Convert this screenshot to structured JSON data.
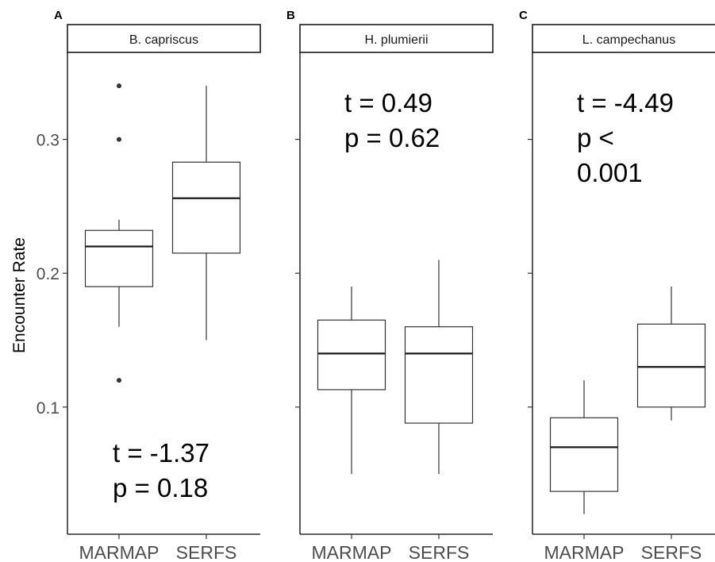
{
  "chart_data": {
    "type": "boxplot",
    "ylabel": "Encounter Rate",
    "categories": [
      "MARMAP",
      "SERFS"
    ],
    "y_ticks": [
      0.1,
      0.2,
      0.3
    ],
    "y_tick_labels": [
      "0.1",
      "0.2",
      "0.3"
    ],
    "ylim": [
      0.005,
      0.365
    ],
    "panels": [
      {
        "letter": "A",
        "title": "B. capriscus",
        "stats": [
          "t = -1.37",
          "p = 0.18"
        ],
        "stats_position": "bottom",
        "boxes": [
          {
            "category": "MARMAP",
            "min": 0.16,
            "q1": 0.19,
            "median": 0.22,
            "q3": 0.232,
            "max": 0.24,
            "outliers": [
              0.34,
              0.3,
              0.12
            ]
          },
          {
            "category": "SERFS",
            "min": 0.15,
            "q1": 0.215,
            "median": 0.256,
            "q3": 0.283,
            "max": 0.34,
            "outliers": []
          }
        ]
      },
      {
        "letter": "B",
        "title": "H. plumierii",
        "stats": [
          "t = 0.49",
          "p = 0.62"
        ],
        "stats_position": "top",
        "boxes": [
          {
            "category": "MARMAP",
            "min": 0.05,
            "q1": 0.113,
            "median": 0.14,
            "q3": 0.165,
            "max": 0.19,
            "outliers": []
          },
          {
            "category": "SERFS",
            "min": 0.05,
            "q1": 0.088,
            "median": 0.14,
            "q3": 0.16,
            "max": 0.21,
            "outliers": []
          }
        ]
      },
      {
        "letter": "C",
        "title": "L. campechanus",
        "stats": [
          "t = -4.49",
          "p <",
          "0.001"
        ],
        "stats_position": "top",
        "boxes": [
          {
            "category": "MARMAP",
            "min": 0.02,
            "q1": 0.037,
            "median": 0.07,
            "q3": 0.092,
            "max": 0.12,
            "outliers": []
          },
          {
            "category": "SERFS",
            "min": 0.09,
            "q1": 0.1,
            "median": 0.13,
            "q3": 0.162,
            "max": 0.19,
            "outliers": []
          }
        ]
      }
    ]
  }
}
